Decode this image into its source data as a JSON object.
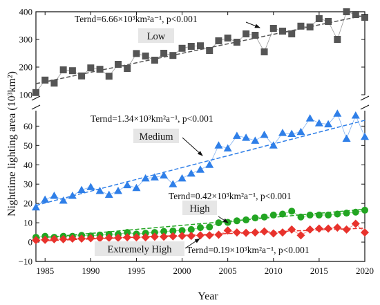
{
  "chart_data": {
    "type": "scatter",
    "xlabel": "Year",
    "ylabel": "Nighttime lighting area (10³km²)",
    "x_ticks": [
      1985,
      1990,
      1995,
      2000,
      2005,
      2010,
      2015,
      2020
    ],
    "xlim": [
      1984,
      2020
    ],
    "broken_y_axis": true,
    "upper_panel": {
      "ylim": [
        100,
        400
      ],
      "y_ticks": [
        100,
        200,
        300,
        400
      ]
    },
    "lower_panel": {
      "ylim": [
        -10,
        68
      ],
      "y_ticks": [
        -10,
        0,
        10,
        20,
        30,
        40,
        50,
        60
      ]
    },
    "years": [
      1984,
      1985,
      1986,
      1987,
      1988,
      1989,
      1990,
      1991,
      1992,
      1993,
      1994,
      1995,
      1996,
      1997,
      1998,
      1999,
      2000,
      2001,
      2002,
      2003,
      2004,
      2005,
      2006,
      2007,
      2008,
      2009,
      2010,
      2011,
      2012,
      2013,
      2014,
      2015,
      2016,
      2017,
      2018,
      2019,
      2020
    ],
    "series": [
      {
        "name": "Low",
        "panel": "upper",
        "marker": "square",
        "color": "#555555",
        "values": [
          108,
          153,
          142,
          190,
          187,
          168,
          197,
          192,
          167,
          210,
          195,
          249,
          240,
          225,
          250,
          242,
          268,
          275,
          277,
          260,
          295,
          305,
          290,
          320,
          315,
          255,
          340,
          330,
          320,
          348,
          345,
          375,
          365,
          300,
          400,
          390,
          380
        ],
        "trend_text": "Ternd=6.66×10³km²a⁻¹, p<0.001",
        "trend_start": 140,
        "trend_end": 387
      },
      {
        "name": "Medium",
        "panel": "lower",
        "marker": "triangle",
        "color": "#2f7fe8",
        "values": [
          18,
          22,
          24,
          21.5,
          24,
          27,
          28.5,
          26.5,
          24.5,
          26.5,
          29.5,
          28,
          33,
          33.5,
          34.5,
          30,
          33,
          35.5,
          37.5,
          40,
          50,
          48.5,
          55,
          54,
          52.5,
          55.5,
          50,
          56.5,
          56,
          57,
          64,
          61.5,
          61,
          66.5,
          53.5,
          65.5,
          54.5
        ],
        "trend_text": "Ternd=1.34×10³km²a⁻¹, p<0.001",
        "trend_start": 19,
        "trend_end": 63
      },
      {
        "name": "High",
        "panel": "lower",
        "marker": "circle",
        "color": "#22a522",
        "values": [
          2.5,
          3,
          2.5,
          3,
          3,
          3.5,
          3.2,
          3.7,
          4,
          4,
          5,
          4.2,
          4.6,
          5,
          5.5,
          5.8,
          6,
          6.5,
          7.5,
          7.8,
          10,
          10.2,
          11,
          11.5,
          12.5,
          13,
          14,
          14.5,
          16,
          13,
          14,
          14,
          14,
          14.5,
          15,
          15.5,
          16.5
        ],
        "trend_text": "Ternd=0.42×10³km²a⁻¹, p<0.001",
        "trend_start": 2,
        "trend_end": 17
      },
      {
        "name": "Extremely High",
        "panel": "lower",
        "marker": "diamond",
        "color": "#e8322c",
        "values": [
          1,
          1.2,
          1.5,
          1.5,
          1.8,
          1.8,
          2,
          2,
          2.2,
          2.2,
          2.5,
          2.5,
          2.5,
          2.8,
          2.8,
          3,
          3.2,
          3.2,
          3.5,
          3.5,
          3.8,
          6,
          5,
          4.8,
          5,
          5.5,
          4.5,
          5,
          6.5,
          3.5,
          6.5,
          7,
          7,
          7.5,
          6.5,
          9.5,
          5
        ],
        "trend_text": "Ternd=0.19×10³km²a⁻¹, p<0.001",
        "trend_start": 0.5,
        "trend_end": 7.2
      }
    ]
  }
}
